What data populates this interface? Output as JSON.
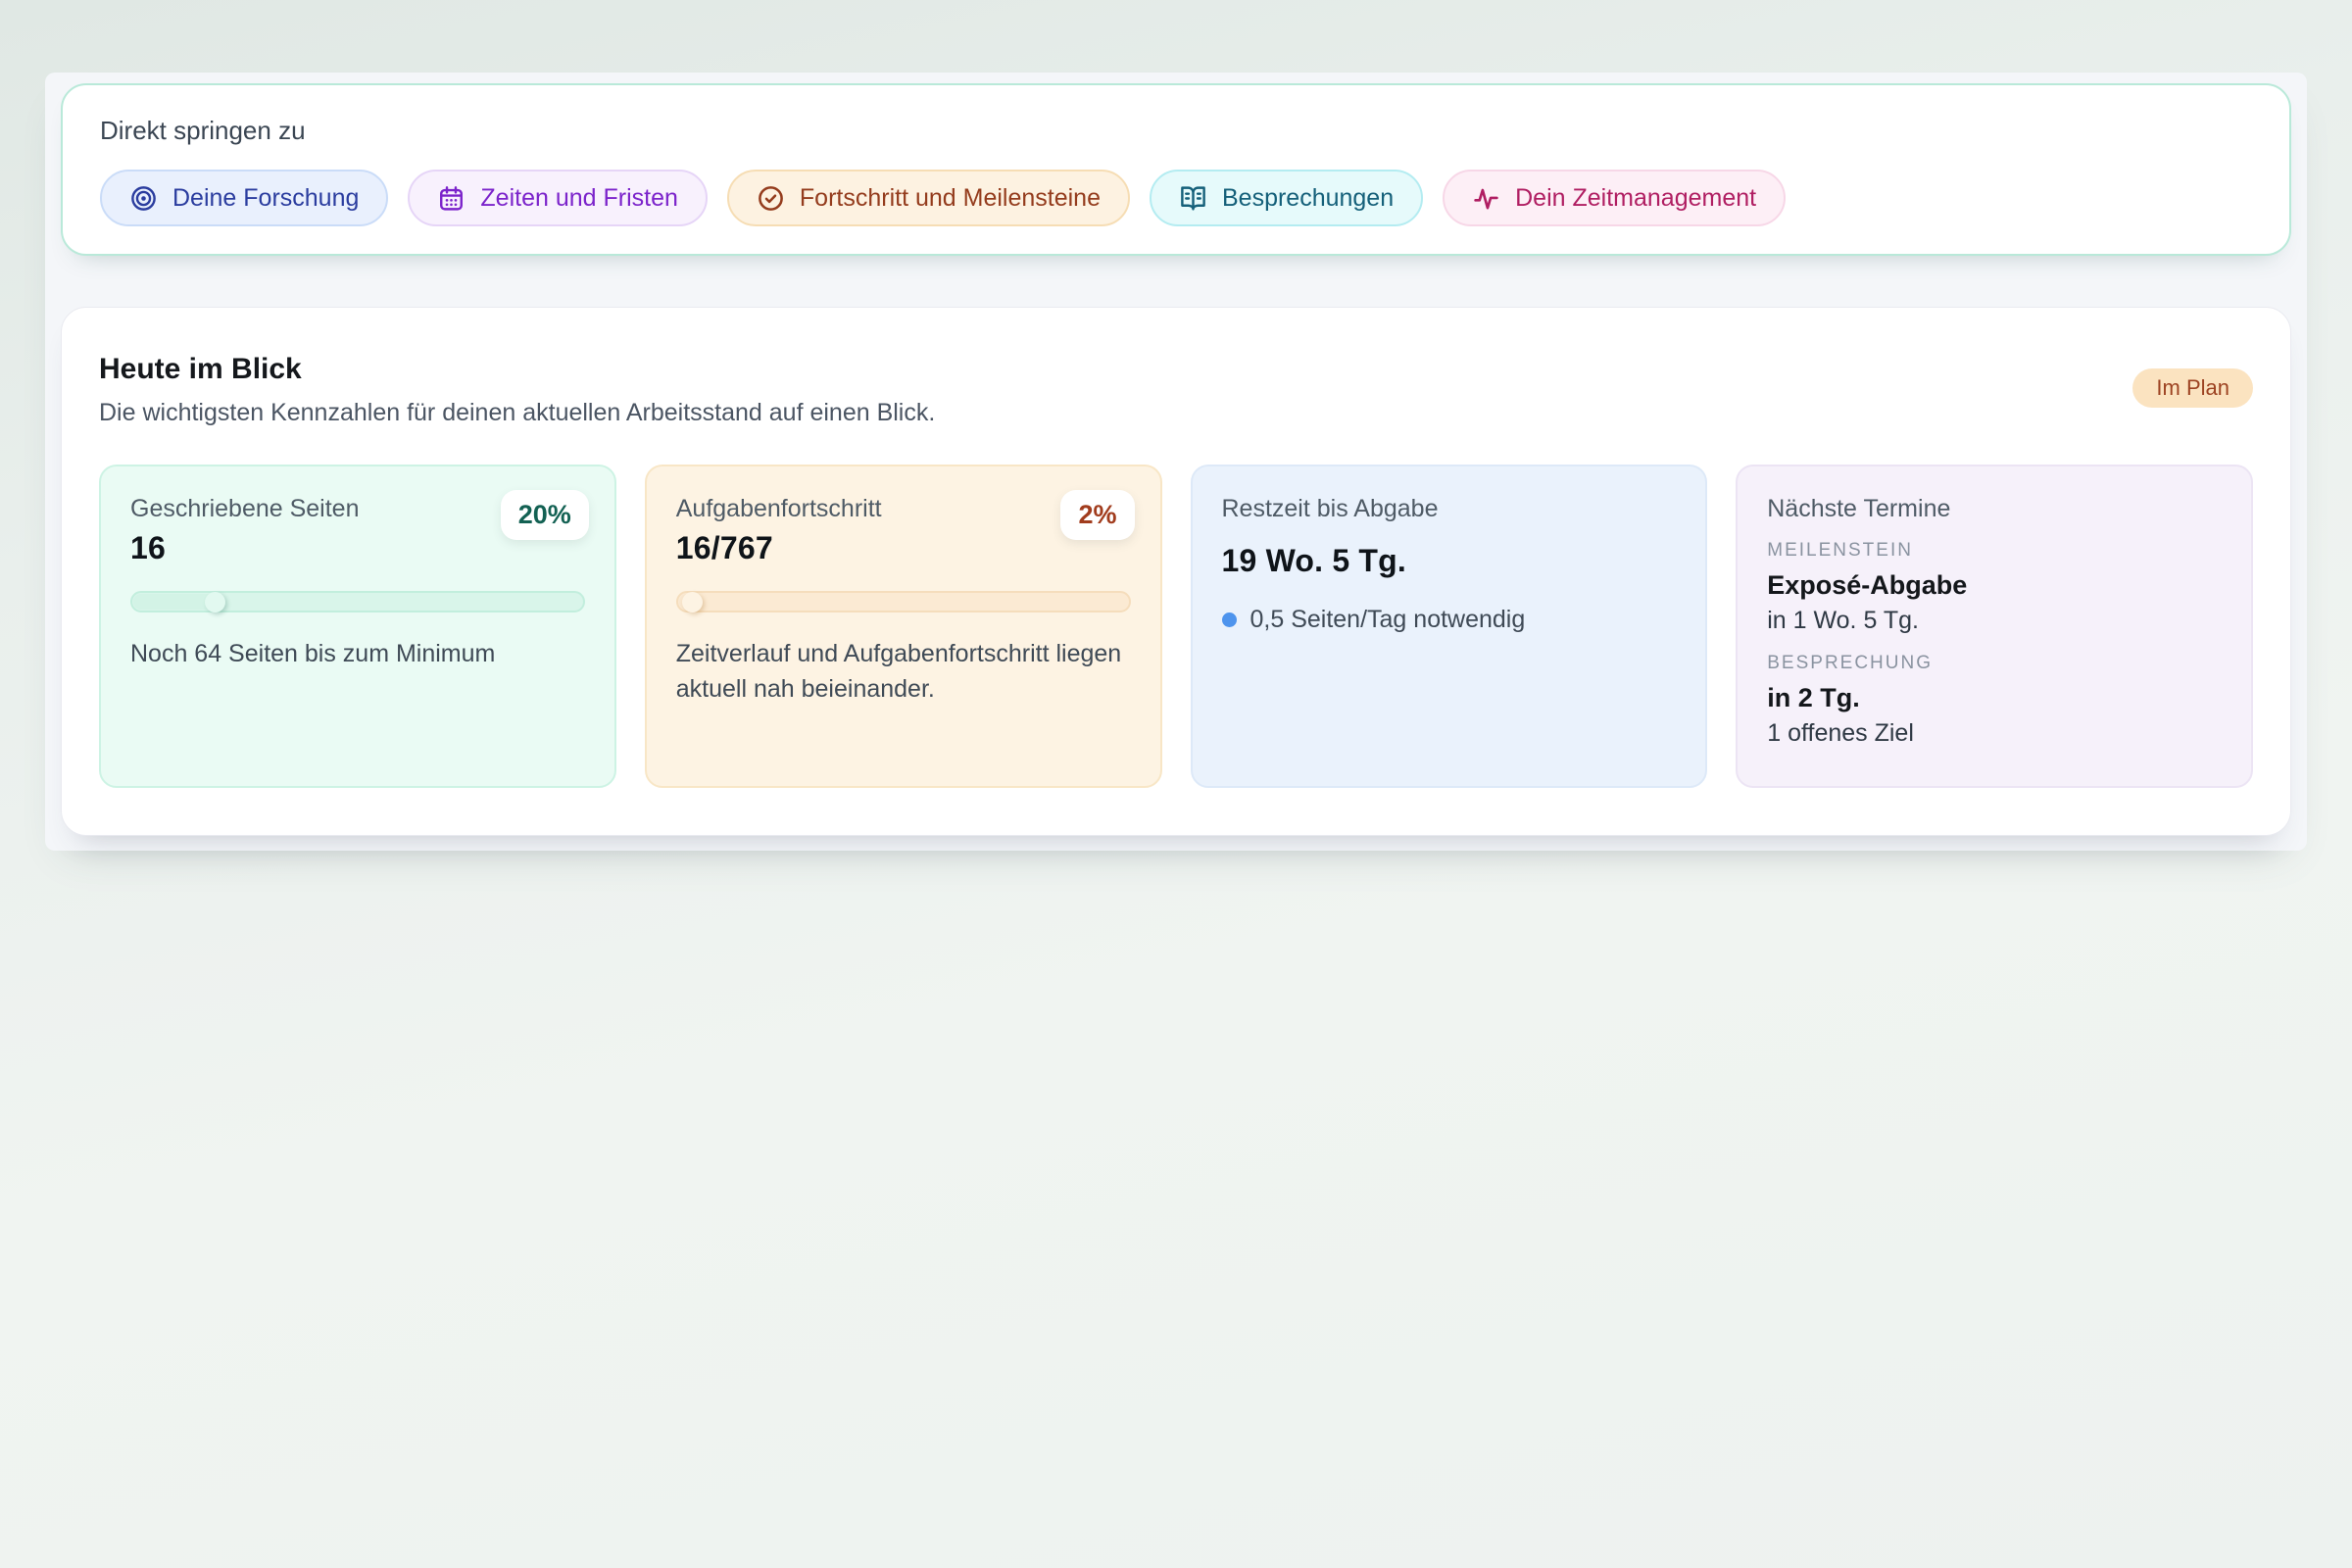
{
  "quick_nav": {
    "title": "Direkt springen zu",
    "items": [
      {
        "label": "Deine Forschung",
        "icon": "target-icon",
        "color": "#2b3d9f",
        "bg": "#e9f0fd",
        "border": "#cadcf8"
      },
      {
        "label": "Zeiten und Fristen",
        "icon": "calendar-icon",
        "color": "#7c24cb",
        "bg": "#f8f1fd",
        "border": "#e6d5f7"
      },
      {
        "label": "Fortschritt und Meilensteine",
        "icon": "circle-check-icon",
        "color": "#943c1d",
        "bg": "#fdf2e1",
        "border": "#f6ddb4"
      },
      {
        "label": "Besprechungen",
        "icon": "book-open-icon",
        "color": "#15607a",
        "bg": "#e6fafb",
        "border": "#b4ecf1"
      },
      {
        "label": "Dein Zeitmanagement",
        "icon": "activity-icon",
        "color": "#b01e62",
        "bg": "#fdeff6",
        "border": "#f7d7e7"
      }
    ]
  },
  "overview": {
    "title": "Heute im Blick",
    "subtitle": "Die wichtigsten Kennzahlen für deinen aktuellen Arbeitsstand auf einen Blick.",
    "status_badge": {
      "label": "Im Plan",
      "bg": "#fbe3c0",
      "color": "#9d4322"
    },
    "cards": [
      {
        "label": "Geschriebene Seiten",
        "value": "16",
        "badge": "20%",
        "badge_color": "#136153",
        "progress_pct": 20,
        "note": "Noch 64 Seiten bis zum Minimum",
        "theme": "green"
      },
      {
        "label": "Aufgabenfortschritt",
        "value": "16/767",
        "badge": "2%",
        "badge_color": "#a13c1d",
        "progress_pct": 4,
        "note": "Zeitverlauf und Aufgabenfortschritt liegen aktuell nah beieinander.",
        "theme": "orange"
      },
      {
        "label": "Restzeit bis Abgabe",
        "value": "19 Wo. 5 Tg.",
        "bullet": "0,5 Seiten/Tag notwendig",
        "bullet_color": "#4e94ed",
        "theme": "blue"
      },
      {
        "label": "Nächste Termine",
        "theme": "purple",
        "entries": [
          {
            "kicker": "MEILENSTEIN",
            "title": "Exposé-Abgabe",
            "detail": "in 1 Wo. 5 Tg."
          },
          {
            "kicker": "BESPRECHUNG",
            "title": "in 2 Tg.",
            "detail": "1 offenes Ziel"
          }
        ]
      }
    ]
  }
}
